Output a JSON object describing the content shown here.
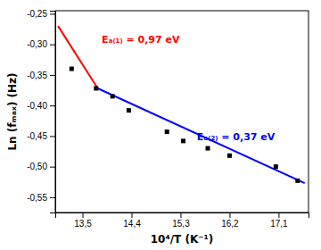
{
  "chart_data": {
    "type": "scatter",
    "xlabel": "10⁴/T (K⁻¹)",
    "ylabel": "Ln (fₘₐₓ) (Hz)",
    "xlim": [
      13.0,
      17.65
    ],
    "ylim": [
      -0.575,
      -0.245
    ],
    "xticks": [
      {
        "value": 13.5,
        "label": "13,5"
      },
      {
        "value": 14.4,
        "label": "14,4"
      },
      {
        "value": 15.3,
        "label": "15,3"
      },
      {
        "value": 16.2,
        "label": "16,2"
      },
      {
        "value": 17.1,
        "label": "17,1"
      }
    ],
    "yticks": [
      {
        "value": -0.25,
        "label": "-0,25"
      },
      {
        "value": -0.3,
        "label": "-0,30"
      },
      {
        "value": -0.35,
        "label": "-0,35"
      },
      {
        "value": -0.4,
        "label": "-0,40"
      },
      {
        "value": -0.45,
        "label": "-0,45"
      },
      {
        "value": -0.5,
        "label": "-0,50"
      },
      {
        "value": -0.55,
        "label": "-0,55"
      }
    ],
    "grid": false,
    "series": [
      {
        "type": "line",
        "color": "#FF0000",
        "x": [
          13.05,
          13.78
        ],
        "values": [
          -0.27,
          -0.372
        ]
      },
      {
        "type": "line",
        "color": "#0000FF",
        "x": [
          13.78,
          17.58
        ],
        "values": [
          -0.372,
          -0.527
        ]
      },
      {
        "type": "scatter",
        "color": "#000000",
        "marker": "square",
        "x": [
          13.3,
          13.75,
          14.05,
          14.35,
          15.05,
          15.35,
          15.8,
          16.2,
          17.05,
          17.45
        ],
        "values": [
          -0.34,
          -0.372,
          -0.385,
          -0.408,
          -0.443,
          -0.458,
          -0.47,
          -0.482,
          -0.5,
          -0.523
        ]
      }
    ],
    "annotations": [
      {
        "text": "Eₐ₍₁₎ = 0,97 eV",
        "x": 13.85,
        "y": -0.293,
        "color": "#FF0000"
      },
      {
        "text": "Eₐ₍₂₎ = 0,37 eV",
        "x": 15.6,
        "y": -0.452,
        "color": "#0000FF"
      }
    ]
  }
}
